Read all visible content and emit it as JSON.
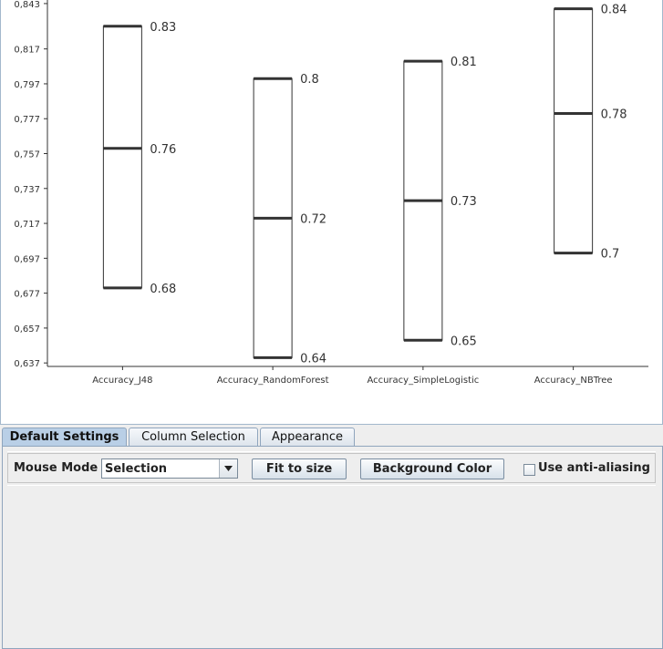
{
  "chart_data": {
    "type": "box",
    "categories": [
      "Accuracy_J48",
      "Accuracy_RandomForest",
      "Accuracy_SimpleLogistic",
      "Accuracy_NBTree"
    ],
    "series": [
      {
        "low": 0.68,
        "mid": 0.76,
        "high": 0.83,
        "low_label": "0.68",
        "mid_label": "0.76",
        "high_label": "0.83"
      },
      {
        "low": 0.64,
        "mid": 0.72,
        "high": 0.8,
        "low_label": "0.64",
        "mid_label": "0.72",
        "high_label": "0.8"
      },
      {
        "low": 0.65,
        "mid": 0.73,
        "high": 0.81,
        "low_label": "0.65",
        "mid_label": "0.73",
        "high_label": "0.81"
      },
      {
        "low": 0.7,
        "mid": 0.78,
        "high": 0.84,
        "low_label": "0.7",
        "mid_label": "0.78",
        "high_label": "0.84"
      }
    ],
    "y_ticks": [
      {
        "value": 0.637,
        "label": "0,637"
      },
      {
        "value": 0.657,
        "label": "0,657"
      },
      {
        "value": 0.677,
        "label": "0,677"
      },
      {
        "value": 0.697,
        "label": "0,697"
      },
      {
        "value": 0.717,
        "label": "0,717"
      },
      {
        "value": 0.737,
        "label": "0,737"
      },
      {
        "value": 0.757,
        "label": "0,757"
      },
      {
        "value": 0.777,
        "label": "0,777"
      },
      {
        "value": 0.797,
        "label": "0,797"
      },
      {
        "value": 0.817,
        "label": "0,817"
      },
      {
        "value": 0.843,
        "label": "0,843"
      }
    ],
    "ylim": [
      0.635,
      0.844
    ],
    "grid": false,
    "colors": {
      "box_stroke": "#333333",
      "box_fill": "#ffffff",
      "axis": "#333333"
    }
  },
  "tabs": [
    {
      "label": "Default Settings",
      "active": true
    },
    {
      "label": "Column Selection",
      "active": false
    },
    {
      "label": "Appearance",
      "active": false
    }
  ],
  "settings": {
    "mouse_mode_label": "Mouse Mode",
    "mouse_mode_value": "Selection",
    "fit_button": "Fit to size",
    "background_color_button": "Background Color",
    "anti_aliasing_label": "Use anti-aliasing",
    "anti_aliasing_checked": false
  }
}
